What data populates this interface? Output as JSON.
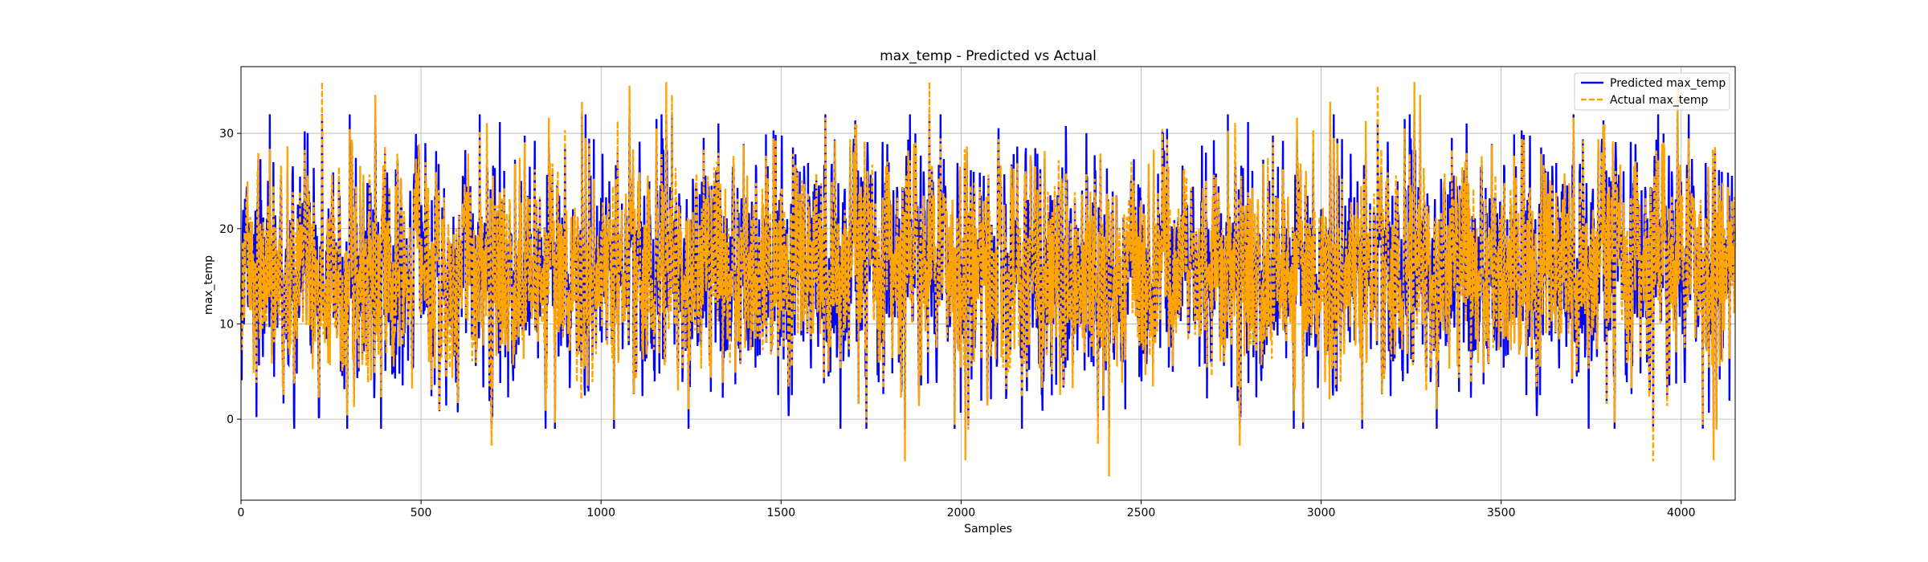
{
  "chart_data": {
    "type": "line",
    "title": "max_temp - Predicted vs Actual",
    "xlabel": "Samples",
    "ylabel": "max_temp",
    "xlim": [
      0,
      4150
    ],
    "ylim": [
      -8.5,
      37.0
    ],
    "xticks": [
      0,
      500,
      1000,
      1500,
      2000,
      2500,
      3000,
      3500,
      4000
    ],
    "yticks": [
      0,
      10,
      20,
      30
    ],
    "grid": true,
    "legend_position": "top-right",
    "n_samples": 4150,
    "series_summary": {
      "mean": 15.5,
      "typical_range": [
        5,
        27
      ],
      "min_observed": -6.0,
      "max_observed": 35.4
    },
    "series": [
      {
        "name": "Predicted max_temp",
        "color": "#0000ff",
        "style": "solid"
      },
      {
        "name": "Actual max_temp",
        "color": "#ffa500",
        "style": "dashed"
      }
    ]
  }
}
